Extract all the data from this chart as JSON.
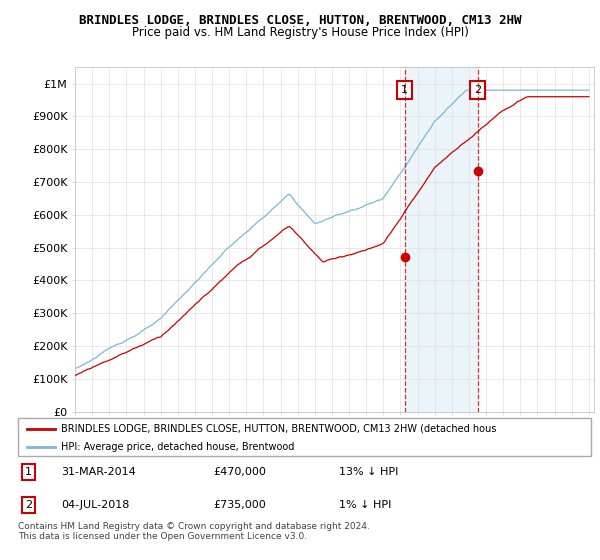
{
  "title": "BRINDLES LODGE, BRINDLES CLOSE, HUTTON, BRENTWOOD, CM13 2HW",
  "subtitle": "Price paid vs. HM Land Registry's House Price Index (HPI)",
  "ylabel_ticks": [
    "£0",
    "£100K",
    "£200K",
    "£300K",
    "£400K",
    "£500K",
    "£600K",
    "£700K",
    "£800K",
    "£900K",
    "£1M"
  ],
  "ytick_values": [
    0,
    100000,
    200000,
    300000,
    400000,
    500000,
    600000,
    700000,
    800000,
    900000,
    1000000
  ],
  "ylim": [
    0,
    1050000
  ],
  "xlim_start": 1995.0,
  "xlim_end": 2025.3,
  "purchase1_date": 2014.25,
  "purchase1_price": 470000,
  "purchase2_date": 2018.5,
  "purchase2_price": 735000,
  "hpi_color": "#7ab8d9",
  "hpi_fill_color": "#ddeef6",
  "price_color": "#cc0000",
  "legend_line1": "BRINDLES LODGE, BRINDLES CLOSE, HUTTON, BRENTWOOD, CM13 2HW (detached hous",
  "legend_line2": "HPI: Average price, detached house, Brentwood",
  "footer": "Contains HM Land Registry data © Crown copyright and database right 2024.\nThis data is licensed under the Open Government Licence v3.0.",
  "background_color": "#ffffff",
  "grid_color": "#e0e0e0",
  "title_fontsize": 9.0,
  "subtitle_fontsize": 8.5
}
